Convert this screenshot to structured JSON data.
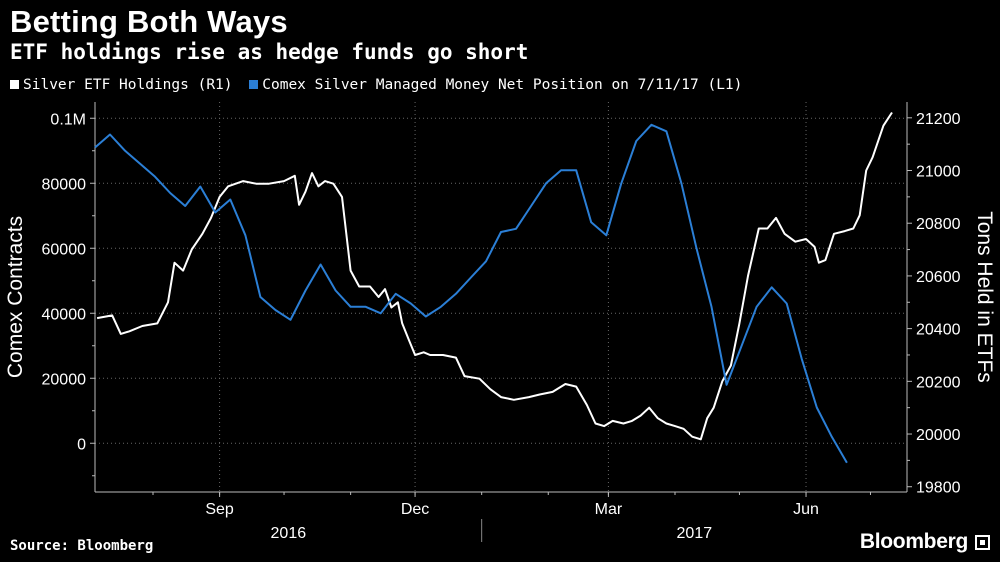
{
  "chart_data": {
    "type": "line",
    "title": "Betting Both Ways",
    "subtitle": "ETF holdings rise as hedge funds go short",
    "legend_position": "top-left",
    "grid": true,
    "y_left": {
      "label": "Comex Contracts",
      "range": [
        -15000,
        105000
      ],
      "ticks": [
        0,
        20000,
        40000,
        60000,
        80000,
        100000
      ],
      "tick_labels": [
        "0",
        "20000",
        "40000",
        "60000",
        "80000",
        "0.1M"
      ]
    },
    "y_right": {
      "label": "Tons Held in ETFs",
      "range": [
        19780,
        21260
      ],
      "ticks": [
        19800,
        20000,
        20200,
        20400,
        20600,
        20800,
        21000,
        21200
      ],
      "tick_labels": [
        "19800",
        "20000",
        "20200",
        "20400",
        "20600",
        "20800",
        "21000",
        "21200"
      ]
    },
    "x_axis": {
      "range": [
        "2016-07-05",
        "2017-07-18"
      ],
      "month_ticks": [
        {
          "date": "2016-09-01",
          "label": "Sep"
        },
        {
          "date": "2016-12-01",
          "label": "Dec"
        },
        {
          "date": "2017-03-01",
          "label": "Mar"
        },
        {
          "date": "2017-06-01",
          "label": "Jun"
        }
      ],
      "years": [
        {
          "label": "2016",
          "start": "2016-07-05",
          "end": "2017-01-01"
        },
        {
          "label": "2017",
          "start": "2017-01-01",
          "end": "2017-07-18"
        }
      ]
    },
    "series": [
      {
        "name": "Silver ETF Holdings (R1)",
        "axis": "right",
        "color": "#ffffff",
        "points": [
          [
            "2016-07-06",
            20440
          ],
          [
            "2016-07-13",
            20450
          ],
          [
            "2016-07-17",
            20380
          ],
          [
            "2016-07-21",
            20390
          ],
          [
            "2016-07-27",
            20410
          ],
          [
            "2016-08-03",
            20420
          ],
          [
            "2016-08-08",
            20500
          ],
          [
            "2016-08-11",
            20650
          ],
          [
            "2016-08-15",
            20620
          ],
          [
            "2016-08-19",
            20700
          ],
          [
            "2016-08-24",
            20760
          ],
          [
            "2016-08-28",
            20820
          ],
          [
            "2016-09-01",
            20900
          ],
          [
            "2016-09-05",
            20940
          ],
          [
            "2016-09-12",
            20960
          ],
          [
            "2016-09-18",
            20950
          ],
          [
            "2016-09-24",
            20950
          ],
          [
            "2016-10-01",
            20960
          ],
          [
            "2016-10-06",
            20980
          ],
          [
            "2016-10-08",
            20870
          ],
          [
            "2016-10-11",
            20920
          ],
          [
            "2016-10-14",
            20990
          ],
          [
            "2016-10-17",
            20940
          ],
          [
            "2016-10-20",
            20960
          ],
          [
            "2016-10-24",
            20950
          ],
          [
            "2016-10-28",
            20900
          ],
          [
            "2016-11-01",
            20620
          ],
          [
            "2016-11-05",
            20560
          ],
          [
            "2016-11-10",
            20560
          ],
          [
            "2016-11-14",
            20520
          ],
          [
            "2016-11-17",
            20550
          ],
          [
            "2016-11-20",
            20480
          ],
          [
            "2016-11-23",
            20500
          ],
          [
            "2016-11-25",
            20420
          ],
          [
            "2016-11-28",
            20360
          ],
          [
            "2016-12-01",
            20300
          ],
          [
            "2016-12-05",
            20310
          ],
          [
            "2016-12-08",
            20300
          ],
          [
            "2016-12-14",
            20300
          ],
          [
            "2016-12-20",
            20290
          ],
          [
            "2016-12-24",
            20220
          ],
          [
            "2016-12-31",
            20210
          ],
          [
            "2017-01-05",
            20170
          ],
          [
            "2017-01-10",
            20140
          ],
          [
            "2017-01-16",
            20130
          ],
          [
            "2017-01-23",
            20140
          ],
          [
            "2017-01-28",
            20150
          ],
          [
            "2017-02-03",
            20160
          ],
          [
            "2017-02-09",
            20190
          ],
          [
            "2017-02-14",
            20180
          ],
          [
            "2017-02-19",
            20110
          ],
          [
            "2017-02-23",
            20040
          ],
          [
            "2017-02-27",
            20030
          ],
          [
            "2017-03-03",
            20050
          ],
          [
            "2017-03-08",
            20040
          ],
          [
            "2017-03-12",
            20050
          ],
          [
            "2017-03-16",
            20070
          ],
          [
            "2017-03-20",
            20100
          ],
          [
            "2017-03-24",
            20060
          ],
          [
            "2017-03-28",
            20040
          ],
          [
            "2017-04-01",
            20030
          ],
          [
            "2017-04-05",
            20020
          ],
          [
            "2017-04-09",
            19990
          ],
          [
            "2017-04-13",
            19980
          ],
          [
            "2017-04-16",
            20060
          ],
          [
            "2017-04-19",
            20100
          ],
          [
            "2017-04-23",
            20200
          ],
          [
            "2017-04-27",
            20260
          ],
          [
            "2017-05-01",
            20420
          ],
          [
            "2017-05-05",
            20600
          ],
          [
            "2017-05-10",
            20780
          ],
          [
            "2017-05-14",
            20780
          ],
          [
            "2017-05-18",
            20820
          ],
          [
            "2017-05-22",
            20760
          ],
          [
            "2017-05-27",
            20730
          ],
          [
            "2017-06-01",
            20740
          ],
          [
            "2017-06-05",
            20710
          ],
          [
            "2017-06-07",
            20650
          ],
          [
            "2017-06-10",
            20660
          ],
          [
            "2017-06-14",
            20760
          ],
          [
            "2017-06-19",
            20770
          ],
          [
            "2017-06-23",
            20780
          ],
          [
            "2017-06-26",
            20830
          ],
          [
            "2017-06-29",
            21000
          ],
          [
            "2017-07-02",
            21050
          ],
          [
            "2017-07-07",
            21170
          ],
          [
            "2017-07-11",
            21220
          ]
        ]
      },
      {
        "name": "Comex Silver Managed Money Net Position on 7/11/17 (L1)",
        "axis": "left",
        "color": "#2b7fd6",
        "points": [
          [
            "2016-07-05",
            91000
          ],
          [
            "2016-07-12",
            95000
          ],
          [
            "2016-07-19",
            90000
          ],
          [
            "2016-07-26",
            86000
          ],
          [
            "2016-08-02",
            82000
          ],
          [
            "2016-08-09",
            77000
          ],
          [
            "2016-08-16",
            73000
          ],
          [
            "2016-08-23",
            79000
          ],
          [
            "2016-08-30",
            71000
          ],
          [
            "2016-09-06",
            75000
          ],
          [
            "2016-09-13",
            64000
          ],
          [
            "2016-09-20",
            45000
          ],
          [
            "2016-09-27",
            41000
          ],
          [
            "2016-10-04",
            38000
          ],
          [
            "2016-10-11",
            47000
          ],
          [
            "2016-10-18",
            55000
          ],
          [
            "2016-10-25",
            47000
          ],
          [
            "2016-11-01",
            42000
          ],
          [
            "2016-11-08",
            42000
          ],
          [
            "2016-11-15",
            40000
          ],
          [
            "2016-11-22",
            46000
          ],
          [
            "2016-11-29",
            43000
          ],
          [
            "2016-12-06",
            39000
          ],
          [
            "2016-12-13",
            42000
          ],
          [
            "2016-12-20",
            46000
          ],
          [
            "2016-12-27",
            51000
          ],
          [
            "2017-01-03",
            56000
          ],
          [
            "2017-01-10",
            65000
          ],
          [
            "2017-01-17",
            66000
          ],
          [
            "2017-01-24",
            73000
          ],
          [
            "2017-01-31",
            80000
          ],
          [
            "2017-02-07",
            84000
          ],
          [
            "2017-02-14",
            84000
          ],
          [
            "2017-02-21",
            68000
          ],
          [
            "2017-02-28",
            64000
          ],
          [
            "2017-03-07",
            80000
          ],
          [
            "2017-03-14",
            93000
          ],
          [
            "2017-03-21",
            98000
          ],
          [
            "2017-03-28",
            96000
          ],
          [
            "2017-04-04",
            80000
          ],
          [
            "2017-04-11",
            60000
          ],
          [
            "2017-04-18",
            42000
          ],
          [
            "2017-04-25",
            18000
          ],
          [
            "2017-05-02",
            30000
          ],
          [
            "2017-05-09",
            42000
          ],
          [
            "2017-05-16",
            48000
          ],
          [
            "2017-05-23",
            43000
          ],
          [
            "2017-05-30",
            26000
          ],
          [
            "2017-06-06",
            11000
          ],
          [
            "2017-06-13",
            2000
          ],
          [
            "2017-06-20",
            -6000
          ]
        ]
      }
    ]
  },
  "footer": {
    "source": "Source: Bloomberg",
    "brand": "Bloomberg"
  }
}
